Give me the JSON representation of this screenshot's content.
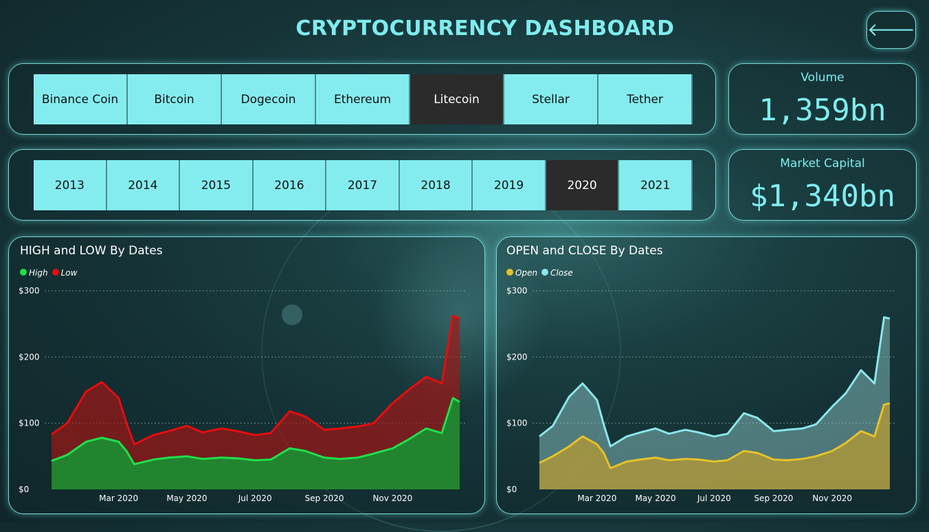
{
  "title": "CRYPTOCURRENCY DASHBOARD",
  "back_icon": "back-arrow-icon",
  "coins": {
    "items": [
      "Binance Coin",
      "Bitcoin",
      "Dogecoin",
      "Ethereum",
      "Litecoin",
      "Stellar",
      "Tether"
    ],
    "selected": "Litecoin"
  },
  "years": {
    "items": [
      "2013",
      "2014",
      "2015",
      "2016",
      "2017",
      "2018",
      "2019",
      "2020",
      "2021"
    ],
    "selected": "2020"
  },
  "kpi": {
    "volume_label": "Volume",
    "volume_value": "1,359bn",
    "market_cap_label": "Market Capital",
    "market_cap_value": "$1,340bn"
  },
  "colors": {
    "accent": "#7fecee",
    "high": "#1ee04a",
    "low": "#e50d0d",
    "open": "#e6c229",
    "close": "#8ae6ea"
  },
  "chart_data": [
    {
      "type": "area",
      "title": "HIGH and LOW By Dates",
      "x_tick_labels": [
        "Mar 2020",
        "May 2020",
        "Jul 2020",
        "Sep 2020",
        "Nov 2020"
      ],
      "y_tick_labels": [
        "$0",
        "$100",
        "$200",
        "$300"
      ],
      "ylim": [
        0,
        300
      ],
      "grid": true,
      "legend": "top-left",
      "x": [
        "2020-01-01",
        "2020-01-15",
        "2020-02-01",
        "2020-02-15",
        "2020-03-01",
        "2020-03-08",
        "2020-03-15",
        "2020-04-01",
        "2020-04-15",
        "2020-05-01",
        "2020-05-15",
        "2020-06-01",
        "2020-06-15",
        "2020-07-01",
        "2020-07-15",
        "2020-08-01",
        "2020-08-15",
        "2020-09-01",
        "2020-09-15",
        "2020-10-01",
        "2020-10-15",
        "2020-11-01",
        "2020-11-15",
        "2020-12-01",
        "2020-12-15",
        "2020-12-25",
        "2020-12-31"
      ],
      "series": [
        {
          "name": "High",
          "values": [
            43,
            52,
            72,
            78,
            72,
            58,
            38,
            45,
            48,
            50,
            46,
            48,
            47,
            44,
            45,
            62,
            58,
            48,
            46,
            48,
            54,
            62,
            75,
            92,
            85,
            138,
            132
          ]
        },
        {
          "name": "Low",
          "values": [
            83,
            100,
            148,
            162,
            138,
            100,
            68,
            82,
            88,
            96,
            86,
            92,
            88,
            82,
            85,
            118,
            110,
            90,
            92,
            95,
            100,
            130,
            150,
            170,
            160,
            262,
            258
          ]
        }
      ]
    },
    {
      "type": "area",
      "title": "OPEN and CLOSE By Dates",
      "x_tick_labels": [
        "Mar 2020",
        "May 2020",
        "Jul 2020",
        "Sep 2020",
        "Nov 2020"
      ],
      "y_tick_labels": [
        "$0",
        "$100",
        "$200",
        "$300"
      ],
      "ylim": [
        0,
        300
      ],
      "grid": true,
      "legend": "top-left",
      "x": [
        "2020-01-01",
        "2020-01-15",
        "2020-02-01",
        "2020-02-15",
        "2020-03-01",
        "2020-03-08",
        "2020-03-15",
        "2020-04-01",
        "2020-04-15",
        "2020-05-01",
        "2020-05-15",
        "2020-06-01",
        "2020-06-15",
        "2020-07-01",
        "2020-07-15",
        "2020-08-01",
        "2020-08-15",
        "2020-09-01",
        "2020-09-15",
        "2020-10-01",
        "2020-10-15",
        "2020-11-01",
        "2020-11-15",
        "2020-12-01",
        "2020-12-15",
        "2020-12-25",
        "2020-12-31"
      ],
      "series": [
        {
          "name": "Open",
          "values": [
            40,
            50,
            65,
            80,
            68,
            55,
            32,
            42,
            45,
            48,
            44,
            46,
            45,
            42,
            44,
            58,
            55,
            45,
            44,
            46,
            50,
            58,
            70,
            88,
            80,
            128,
            130
          ]
        },
        {
          "name": "Close",
          "values": [
            80,
            96,
            140,
            160,
            135,
            98,
            65,
            80,
            86,
            92,
            84,
            90,
            86,
            80,
            84,
            115,
            108,
            88,
            90,
            92,
            98,
            125,
            145,
            180,
            160,
            260,
            258
          ]
        }
      ]
    }
  ]
}
